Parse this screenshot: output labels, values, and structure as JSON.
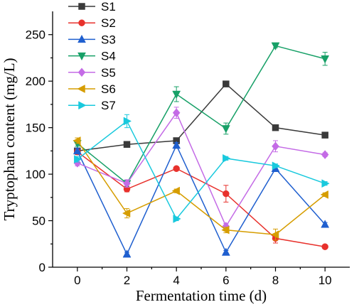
{
  "chart_data": {
    "type": "line",
    "xlabel": "Fermentation time (d)",
    "ylabel": "Tryptophan content (mg/L)",
    "x": [
      0,
      2,
      4,
      6,
      8,
      10
    ],
    "xticks": [
      "0",
      "2",
      "4",
      "6",
      "8",
      "10"
    ],
    "xlim": [
      -1,
      11
    ],
    "ylim": [
      0,
      275
    ],
    "yticks": [
      "0",
      "50",
      "100",
      "150",
      "200",
      "250"
    ],
    "ytick_values": [
      0,
      50,
      100,
      150,
      200,
      250
    ],
    "grid": false,
    "legend_position": "top-center",
    "series": [
      {
        "name": "S1",
        "color": "#3a3a3a",
        "marker": "square",
        "values": [
          125,
          132,
          136,
          197,
          150,
          142
        ],
        "errors": [
          3,
          2,
          2,
          2,
          2,
          2
        ]
      },
      {
        "name": "S2",
        "color": "#e8312c",
        "marker": "circle",
        "values": [
          124,
          84,
          106,
          79,
          31,
          22
        ],
        "errors": [
          3,
          3,
          2,
          9,
          5,
          2
        ]
      },
      {
        "name": "S3",
        "color": "#1f5fcf",
        "marker": "triangle-up",
        "values": [
          125,
          14,
          131,
          16,
          106,
          46
        ],
        "errors": [
          3,
          2,
          3,
          2,
          3,
          2
        ]
      },
      {
        "name": "S4",
        "color": "#17a067",
        "marker": "triangle-down",
        "values": [
          133,
          90,
          186,
          149,
          238,
          224
        ],
        "errors": [
          3,
          3,
          8,
          6,
          2,
          7
        ]
      },
      {
        "name": "S5",
        "color": "#c46be6",
        "marker": "diamond",
        "values": [
          112,
          90,
          166,
          44,
          130,
          121
        ],
        "errors": [
          3,
          4,
          6,
          3,
          6,
          2
        ]
      },
      {
        "name": "S6",
        "color": "#d69d00",
        "marker": "triangle-left",
        "values": [
          136,
          58,
          82,
          40,
          35,
          78
        ],
        "errors": [
          3,
          5,
          2,
          3,
          6,
          2
        ]
      },
      {
        "name": "S7",
        "color": "#19c9dd",
        "marker": "triangle-right",
        "values": [
          116,
          157,
          52,
          117,
          109,
          90
        ],
        "errors": [
          3,
          7,
          2,
          2,
          2,
          2
        ]
      }
    ]
  }
}
